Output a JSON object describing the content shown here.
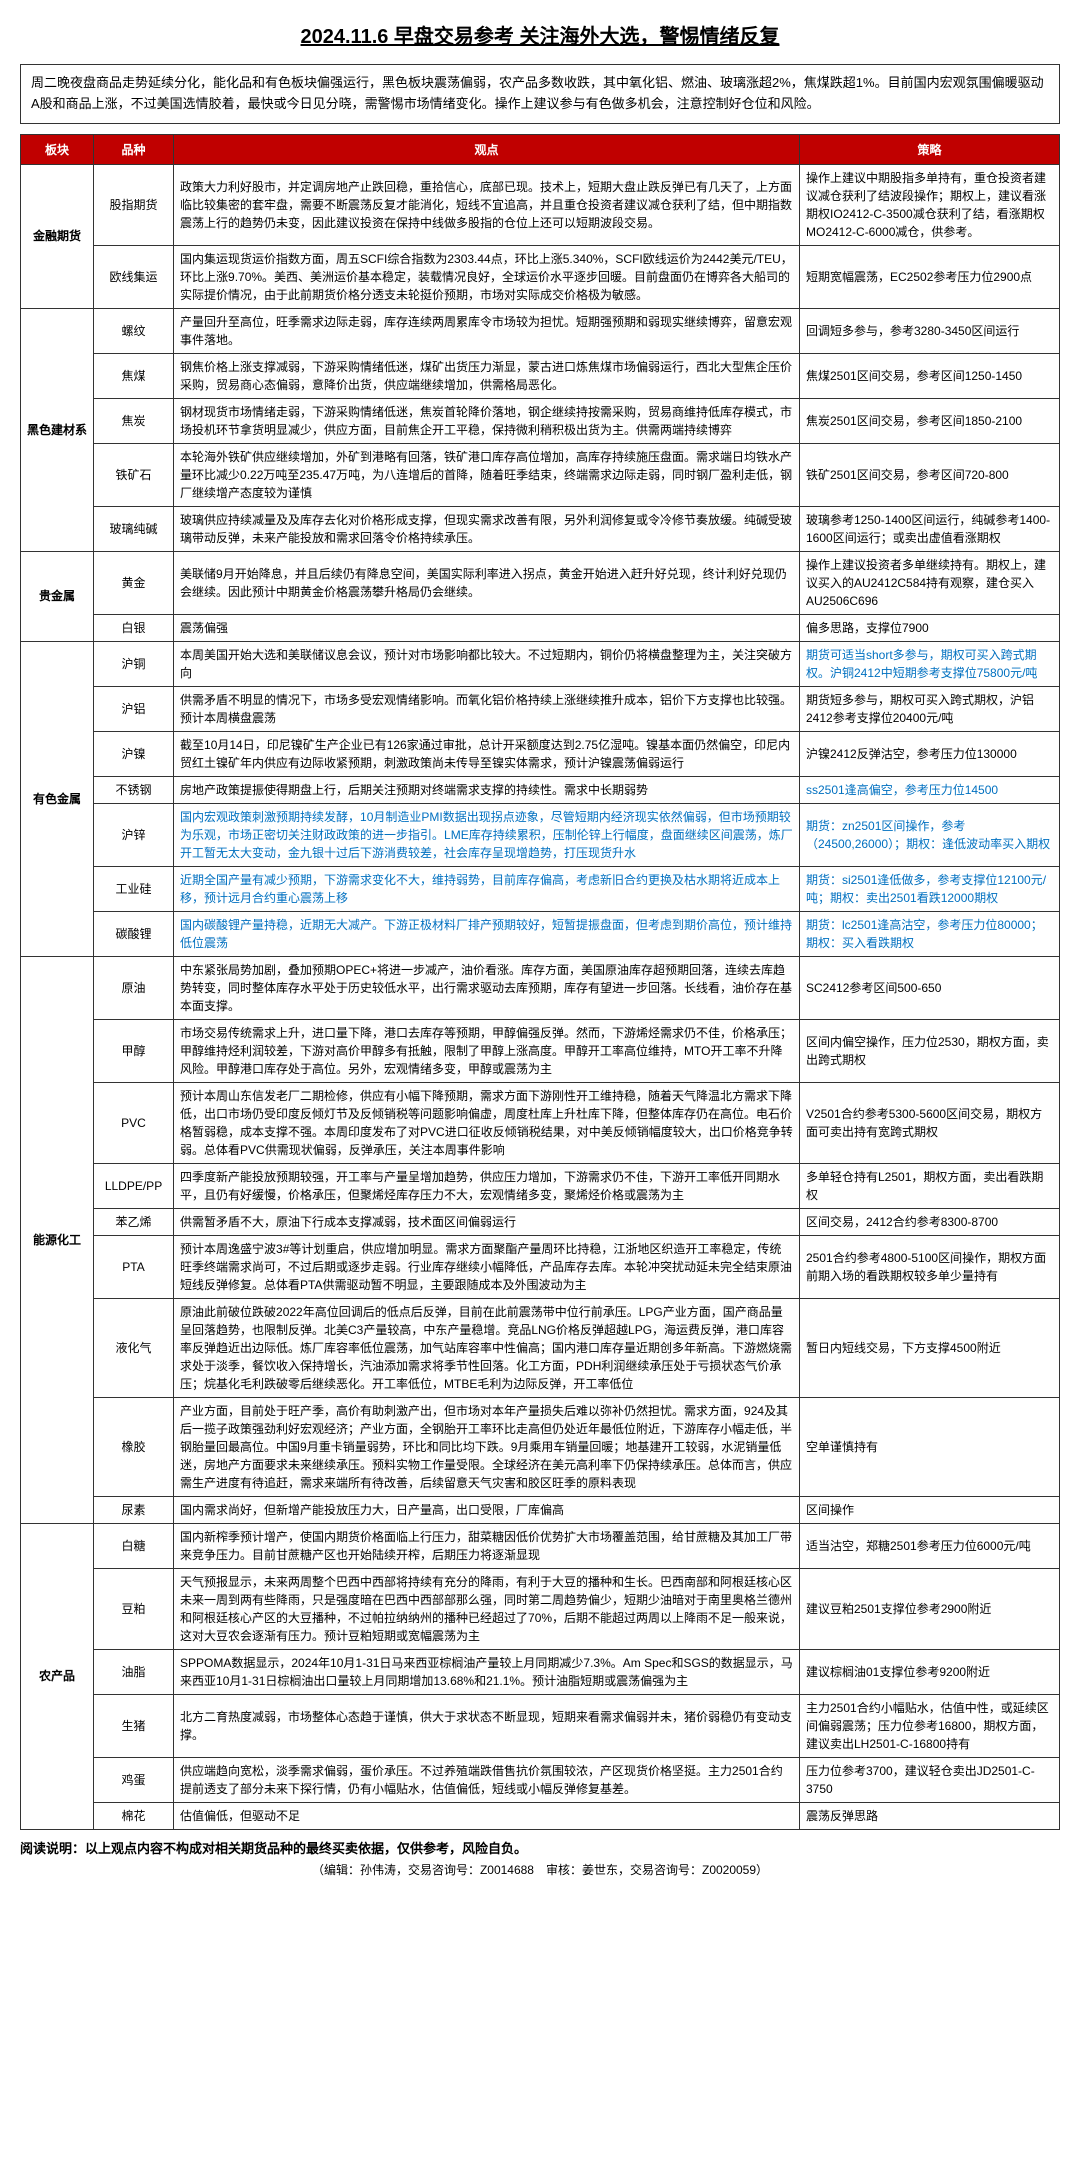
{
  "title": "2024.11.6 早盘交易参考 关注海外大选，警惕情绪反复",
  "intro": "周二晚夜盘商品走势延续分化，能化品和有色板块偏强运行，黑色板块震荡偏弱，农产品多数收跌，其中氧化铝、燃油、玻璃涨超2%，焦煤跌超1%。目前国内宏观氛围偏暖驱动A股和商品上涨，不过美国选情胶着，最快或今日见分晓，需警惕市场情绪变化。操作上建议参与有色做多机会，注意控制好仓位和风险。",
  "headers": {
    "col1": "板块",
    "col2": "品种",
    "col3": "观点",
    "col4": "策略"
  },
  "sections": [
    {
      "category": "金融期货",
      "rows": [
        {
          "variety": "股指期货",
          "view": "政策大力利好股市，并定调房地产止跌回稳，重拾信心，底部已现。技术上，短期大盘止跌反弹已有几天了，上方面临比较集密的套牢盘，需要不断震荡反复才能消化，短线不宜追高，并且重仓投资者建议减仓获利了结，但中期指数震荡上行的趋势仍未变，因此建议投资在保持中线做多股指的仓位上还可以短期波段交易。",
          "strategy": "操作上建议中期股指多单持有，重仓投资者建议减仓获利了结波段操作；期权上，建议看涨期权IO2412-C-3500减仓获利了结，看涨期权MO2412-C-6000减仓，供参考。"
        },
        {
          "variety": "欧线集运",
          "view": "国内集运现货运价指数方面，周五SCFI综合指数为2303.44点，环比上涨5.340%，SCFI欧线运价为2442美元/TEU，环比上涨9.70%。美西、美洲运价基本稳定，装载情况良好，全球运价水平逐步回暖。目前盘面仍在博弈各大船司的实际提价情况，由于此前期货价格分透支未轮挺价预期，市场对实际成交价格极为敏感。",
          "strategy": "短期宽幅震荡，EC2502参考压力位2900点"
        }
      ]
    },
    {
      "category": "黑色建材系",
      "rows": [
        {
          "variety": "螺纹",
          "view": "产量回升至高位，旺季需求边际走弱，库存连续两周累库令市场较为担忧。短期强预期和弱现实继续博弈，留意宏观事件落地。",
          "strategy": "回调短多参与，参考3280-3450区间运行"
        },
        {
          "variety": "焦煤",
          "view": "钢焦价格上涨支撑减弱，下游采购情绪低迷，煤矿出货压力渐显，蒙古进口炼焦煤市场偏弱运行，西北大型焦企压价采购，贸易商心态偏弱，意降价出货，供应端继续增加，供需格局恶化。",
          "strategy": "焦煤2501区间交易，参考区间1250-1450"
        },
        {
          "variety": "焦炭",
          "view": "钢材现货市场情绪走弱，下游采购情绪低迷，焦炭首轮降价落地，钢企继续持按需采购，贸易商维持低库存模式，市场投机环节拿货明显减少，供应方面，目前焦企开工平稳，保持微利稍积极出货为主。供需两端持续博弈",
          "strategy": "焦炭2501区间交易，参考区间1850-2100"
        },
        {
          "variety": "铁矿石",
          "view": "本轮海外铁矿供应继续增加，外矿到港略有回落，铁矿港口库存高位增加，高库存持续施压盘面。需求端日均铁水产量环比减少0.22万吨至235.47万吨，为八连增后的首降，随着旺季结束，终端需求边际走弱，同时钢厂盈利走低，钢厂继续增产态度较为谨慎",
          "strategy": "铁矿2501区间交易，参考区间720-800"
        },
        {
          "variety": "玻璃纯碱",
          "view": "玻璃供应持续减量及及库存去化对价格形成支撑，但现实需求改善有限，另外利润修复或令冷修节奏放缓。纯碱受玻璃带动反弹，未来产能投放和需求回落令价格持续承压。",
          "strategy": "玻璃参考1250-1400区间运行，纯碱参考1400-1600区间运行；或卖出虚值看涨期权"
        }
      ]
    },
    {
      "category": "贵金属",
      "rows": [
        {
          "variety": "黄金",
          "view": "美联储9月开始降息，并且后续仍有降息空间，美国实际利率进入拐点，黄金开始进入赶升好兑现，终计利好兑现仍会继续。因此预计中期黄金价格震荡攀升格局仍会继续。",
          "strategy": "操作上建议投资者多单继续持有。期权上，建议买入的AU2412C584持有观察，建仓买入AU2506C696"
        },
        {
          "variety": "白银",
          "view": "震荡偏强",
          "strategy": "偏多思路，支撑位7900"
        }
      ]
    },
    {
      "category": "有色金属",
      "rows": [
        {
          "variety": "沪铜",
          "view": "本周美国开始大选和美联储议息会议，预计对市场影响都比较大。不过短期内，铜价仍将横盘整理为主，关注突破方向",
          "strategy": "期货可适当short多参与，期权可买入跨式期权。沪铜2412中短期参考支撑位75800元/吨",
          "strategyClass": "blue"
        },
        {
          "variety": "沪铝",
          "view": "供需矛盾不明显的情况下，市场多受宏观情绪影响。而氧化铝价格持续上涨继续推升成本，铝价下方支撑也比较强。预计本周横盘震荡",
          "strategy": "期货短多参与，期权可买入跨式期权，沪铝2412参考支撑位20400元/吨"
        },
        {
          "variety": "沪镍",
          "view": "截至10月14日，印尼镍矿生产企业已有126家通过审批，总计开采额度达到2.75亿湿吨。镍基本面仍然偏空，印尼内贸红土镍矿年内供应有边际收紧预期，刺激政策尚未传导至镍实体需求，预计沪镍震荡偏弱运行",
          "strategy": "沪镍2412反弹沽空，参考压力位130000"
        },
        {
          "variety": "不锈钢",
          "view": "房地产政策提振使得期盘上行，后期关注预期对终端需求支撑的持续性。需求中长期弱势",
          "strategy": "ss2501逢高偏空，参考压力位14500",
          "strategyClass": "blue"
        },
        {
          "variety": "沪锌",
          "view": "国内宏观政策刺激预期持续发酵，10月制造业PMI数据出现拐点迹象，尽管短期内经济现实依然偏弱，但市场预期较为乐观，市场正密切关注财政政策的进一步指引。LME库存持续累积，压制伦锌上行幅度，盘面继续区间震荡，炼厂开工暂无太大变动，金九银十过后下游消费较差，社会库存呈现增趋势，打压现货升水",
          "viewClass": "blue",
          "strategy": "期货：zn2501区间操作，参考（24500,26000）；期权：逢低波动率买入期权",
          "strategyClass": "blue"
        },
        {
          "variety": "工业硅",
          "view": "近期全国产量有减少预期，下游需求变化不大，维持弱势，目前库存偏高，考虑新旧合约更换及枯水期将近成本上移，预计远月合约重心震荡上移",
          "viewClass": "blue",
          "strategy": "期货：si2501逢低做多，参考支撑位12100元/吨；期权：卖出2501看跌12000期权",
          "strategyClass": "blue"
        },
        {
          "variety": "碳酸锂",
          "view": "国内碳酸锂产量持稳，近期无大减产。下游正极材料厂排产预期较好，短暂提振盘面，但考虑到期价高位，预计维持低位震荡",
          "viewClass": "blue",
          "strategy": "期货：lc2501逢高沽空，参考压力位80000；期权：买入看跌期权",
          "strategyClass": "blue"
        }
      ]
    },
    {
      "category": "能源化工",
      "rows": [
        {
          "variety": "原油",
          "view": "中东紧张局势加剧，叠加预期OPEC+将进一步减产，油价看涨。库存方面，美国原油库存超预期回落，连续去库趋势转变，同时整体库存水平处于历史较低水平，出行需求驱动去库预期，库存有望进一步回落。长线看，油价存在基本面支撑。",
          "strategy": "SC2412参考区间500-650"
        },
        {
          "variety": "甲醇",
          "view": "市场交易传统需求上升，进口量下降，港口去库存等预期，甲醇偏强反弹。然而，下游烯烃需求仍不佳，价格承压；甲醇维持烃利润较差，下游对高价甲醇多有抵触，限制了甲醇上涨高度。甲醇开工率高位维持，MTO开工率不升降风险。甲醇港口库存处于高位。另外，宏观情绪多变，甲醇或震荡为主",
          "strategy": "区间内偏空操作，压力位2530，期权方面，卖出跨式期权"
        },
        {
          "variety": "PVC",
          "view": "预计本周山东信发老厂二期检修，供应有小幅下降预期，需求方面下游刚性开工维持稳，随着天气降温北方需求下降低，出口市场仍受印度反倾灯节及反倾销税等问题影响偏虚，周度杜库上升杜库下降，但整体库存仍在高位。电石价格暂弱稳，成本支撑不强。本周印度发布了对PVC进口征收反倾销税结果，对中美反倾销幅度较大，出口价格竞争转弱。总体看PVC供需现状偏弱，反弹承压，关注本周事件影响",
          "strategy": "V2501合约参考5300-5600区间交易，期权方面可卖出持有宽跨式期权"
        },
        {
          "variety": "LLDPE/PP",
          "view": "四季度新产能投放预期较强，开工率与产量呈增加趋势，供应压力增加，下游需求仍不佳，下游开工率低开同期水平，且仍有好缓慢，价格承压，但聚烯烃库存压力不大，宏观情绪多变，聚烯烃价格或震荡为主",
          "strategy": "多单轻仓持有L2501，期权方面，卖出看跌期权"
        },
        {
          "variety": "苯乙烯",
          "view": "供需暂矛盾不大，原油下行成本支撑减弱，技术面区间偏弱运行",
          "strategy": "区间交易，2412合约参考8300-8700"
        },
        {
          "variety": "PTA",
          "view": "预计本周逸盛宁波3#等计划重启，供应增加明显。需求方面聚酯产量周环比持稳，江浙地区织造开工率稳定，传统旺季终端需求尚可，不过后期或逐步走弱。行业库存继续小幅降低，产品库存去库。本轮冲突扰动延未完全结束原油短线反弹修复。总体看PTA供需驱动暂不明显，主要跟随成本及外围波动为主",
          "strategy": "2501合约参考4800-5100区间操作，期权方面前期入场的看跌期权较多单少量持有"
        },
        {
          "variety": "液化气",
          "view": "原油此前破位跌破2022年高位回调后的低点后反弹，目前在此前震荡带中位行前承压。LPG产业方面，国产商品量呈回落趋势，也限制反弹。北美C3产量较高，中东产量稳增。竞品LNG价格反弹超越LPG，海运费反弹，港口库容率反弹趋近出边际低。炼厂库容率低位震荡，加气站库容率中性偏高；国内港口库存量近期创多年新高。下游燃烧需求处于淡季，餐饮收入保持增长，汽油添加需求将季节性回落。化工方面，PDH利润继续承压处于亏损状态气价承压；烷基化毛利跌破零后继续恶化。开工率低位，MTBE毛利为边际反弹，开工率低位",
          "strategy": "暂日内短线交易，下方支撑4500附近"
        },
        {
          "variety": "橡胶",
          "view": "产业方面，目前处于旺产季，高价有助刺激产出，但市场对本年产量损失后难以弥补仍然担忧。需求方面，924及其后一揽子政策强劲利好宏观经济；产业方面，全钢胎开工率环比走高但仍处近年最低位附近，下游库存小幅走低，半钢胎量回最高位。中国9月重卡销量弱势，环比和同比均下跌。9月乘用车销量回暖；地基建开工较弱，水泥销量低迷，房地产方面要求未来继续承压。预料实物工作量受限。全球经济在美元高利率下仍保持续承压。总体而言，供应需生产进度有待追赶，需求来端所有待改善，后续留意天气灾害和胶区旺季的原料表现",
          "strategy": "空单谨慎持有"
        },
        {
          "variety": "尿素",
          "view": "国内需求尚好，但新增产能投放压力大，日产量高，出口受限，厂库偏高",
          "strategy": "区间操作"
        }
      ]
    },
    {
      "category": "农产品",
      "rows": [
        {
          "variety": "白糖",
          "view": "国内新榨季预计增产，使国内期货价格面临上行压力，甜菜糖因低价优势扩大市场覆盖范围，给甘蔗糖及其加工厂带来竞争压力。目前甘蔗糖产区也开始陆续开榨，后期压力将逐渐显现",
          "strategy": "适当沽空，郑糖2501参考压力位6000元/吨"
        },
        {
          "variety": "豆粕",
          "view": "天气预报显示，未来两周整个巴西中西部将持续有充分的降雨，有利于大豆的播种和生长。巴西南部和阿根廷核心区未来一周到两有些降雨，只是强度暗在巴西中西部部那么强，同时第二周趋势偏少，短期少油暗对于南里奥格兰德州和阿根廷核心产区的大豆播种，不过帕拉纳纳州的播种已经超过了70%，后期不能超过两周以上降雨不足一般来说，这对大豆农会逐渐有压力。预计豆粕短期或宽幅震荡为主",
          "strategy": "建议豆粕2501支撑位参考2900附近"
        },
        {
          "variety": "油脂",
          "view": "SPPOMA数据显示，2024年10月1-31日马来西亚棕榈油产量较上月同期减少7.3%。Am Spec和SGS的数据显示，马来西亚10月1-31日棕榈油出口量较上月同期增加13.68%和21.1%。预计油脂短期或震荡偏强为主",
          "strategy": "建议棕榈油01支撑位参考9200附近"
        },
        {
          "variety": "生猪",
          "view": "北方二育热度减弱，市场整体心态趋于谨慎，供大于求状态不断显现，短期来看需求偏弱并未，猪价弱稳仍有变动支撑。",
          "strategy": "主力2501合约小幅贴水，估值中性，或延续区间偏弱震荡；压力位参考16800，期权方面，建议卖出LH2501-C-16800持有"
        },
        {
          "variety": "鸡蛋",
          "view": "供应端趋向宽松，淡季需求偏弱，蛋价承压。不过养殖端跌借售抗价氛围较浓，产区现货价格坚挺。主力2501合约提前透支了部分未来下探行情，仍有小幅贴水，估值偏低，短线或小幅反弹修复基差。",
          "strategy": "压力位参考3700，建议轻仓卖出JD2501-C-3750"
        },
        {
          "variety": "棉花",
          "view": "估值偏低，但驱动不足",
          "strategy": "震荡反弹思路"
        }
      ]
    }
  ],
  "footer_note": "阅读说明：以上观点内容不构成对相关期货品种的最终买卖依据，仅供参考，风险自负。",
  "footer_credit": "（编辑：孙伟涛，交易咨询号：Z0014688　审核：姜世东，交易咨询号：Z0020059）"
}
